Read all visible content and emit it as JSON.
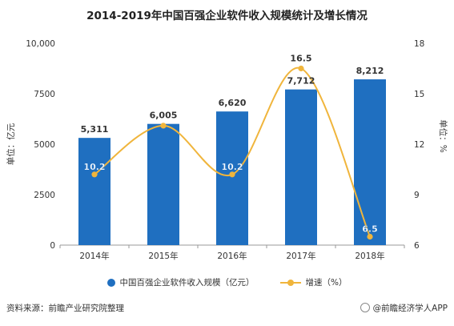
{
  "title": "2014-2019年中国百强企业软件收入规模统计及增长情况",
  "colors": {
    "bar": "#1f6fc0",
    "line": "#f0b53c",
    "bar_label": "#333333",
    "line_label": "#ffffff"
  },
  "chart_data": {
    "type": "bar",
    "title": "2014-2019年中国百强企业软件收入规模统计及增长情况",
    "categories": [
      "2014年",
      "2015年",
      "2016年",
      "2017年",
      "2018年"
    ],
    "series": [
      {
        "name": "中国百强企业软件收入规模（亿元）",
        "type": "bar",
        "axis": "left",
        "values": [
          5311,
          6005,
          6620,
          7712,
          8212
        ],
        "labels": [
          "5,311",
          "6,005",
          "6,620",
          "7,712",
          "8,212"
        ]
      },
      {
        "name": "增速（%）",
        "type": "line",
        "axis": "right",
        "values": [
          10.2,
          13.1,
          10.2,
          16.5,
          6.5
        ],
        "labels": [
          "10.2",
          "",
          "10.2",
          "16.5",
          "6.5"
        ]
      }
    ],
    "ylabel": "单位：亿元",
    "y2label": "单位：%",
    "ylim": [
      0,
      10000
    ],
    "y2lim": [
      6,
      18
    ],
    "yticks": [
      "0",
      "2500",
      "5000",
      "7500",
      "10,000"
    ],
    "y2ticks": [
      "6",
      "9",
      "12",
      "15",
      "18"
    ],
    "grid": false,
    "legend_position": "bottom"
  },
  "legend": {
    "bar_label": "中国百强企业软件收入规模（亿元）",
    "line_label": "增速（%）"
  },
  "footer": {
    "source": "资料来源：前瞻产业研究院整理",
    "brand": "@前瞻经济学人APP"
  }
}
